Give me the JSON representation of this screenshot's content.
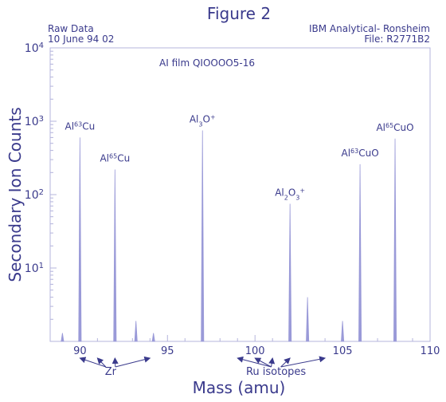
{
  "chart_data": {
    "type": "line",
    "title": "Figure 2",
    "subtitle": "AI film QIOOOO5-16",
    "header_left": [
      "Raw Data",
      "10 June 94 02"
    ],
    "header_right": [
      "IBM Analytical- Ronsheim",
      "File: R2771B2"
    ],
    "xlabel": "Mass (amu)",
    "ylabel": "Secondary Ion Counts",
    "xlim": [
      88.3,
      110
    ],
    "ylim": [
      1,
      10000
    ],
    "yscale": "log",
    "grid": false,
    "x_ticks": [
      90,
      95,
      100,
      105,
      110
    ],
    "y_ticks": [
      {
        "value": 10,
        "base": "10",
        "exp": "1"
      },
      {
        "value": 100,
        "base": "10",
        "exp": "2"
      },
      {
        "value": 1000,
        "base": "10",
        "exp": "3"
      },
      {
        "value": 10000,
        "base": "10",
        "exp": "4"
      }
    ],
    "series": [
      {
        "color": "#9a9ad8",
        "peaks": [
          {
            "x": 89.0,
            "y": 1.3
          },
          {
            "x": 90.0,
            "y": 600
          },
          {
            "x": 92.0,
            "y": 220
          },
          {
            "x": 93.2,
            "y": 1.9
          },
          {
            "x": 94.2,
            "y": 1.3
          },
          {
            "x": 97.0,
            "y": 750
          },
          {
            "x": 102.0,
            "y": 75
          },
          {
            "x": 103.0,
            "y": 4.0
          },
          {
            "x": 105.0,
            "y": 1.9
          },
          {
            "x": 106.0,
            "y": 260
          },
          {
            "x": 108.0,
            "y": 580
          }
        ]
      }
    ],
    "peak_labels": [
      {
        "x": 90.0,
        "y": 600,
        "base": "Al",
        "sup": "63",
        "rest": "Cu"
      },
      {
        "x": 92.0,
        "y": 220,
        "base": "Al",
        "sup": "65",
        "rest": "Cu"
      },
      {
        "x": 97.0,
        "y": 750,
        "formula": [
          [
            "Al",
            ""
          ],
          [
            "3",
            "sub"
          ],
          [
            "O",
            ""
          ],
          [
            "+",
            "sup"
          ]
        ]
      },
      {
        "x": 102.0,
        "y": 75,
        "formula": [
          [
            "Al",
            ""
          ],
          [
            "2",
            "sub"
          ],
          [
            "O",
            ""
          ],
          [
            "3",
            "sub"
          ],
          [
            "+",
            "sup"
          ]
        ]
      },
      {
        "x": 106.0,
        "y": 260,
        "base": "Al",
        "sup": "63",
        "rest": "CuO"
      },
      {
        "x": 108.0,
        "y": 580,
        "base": "Al",
        "sup": "65",
        "rest": "CuO"
      }
    ],
    "annotations": [
      {
        "label": "Zr",
        "targets": [
          90.0,
          91.0,
          92.0,
          94.0
        ]
      },
      {
        "label": "Ru isotopes",
        "targets": [
          99.0,
          100.0,
          101.0,
          102.0,
          104.0
        ]
      }
    ]
  }
}
